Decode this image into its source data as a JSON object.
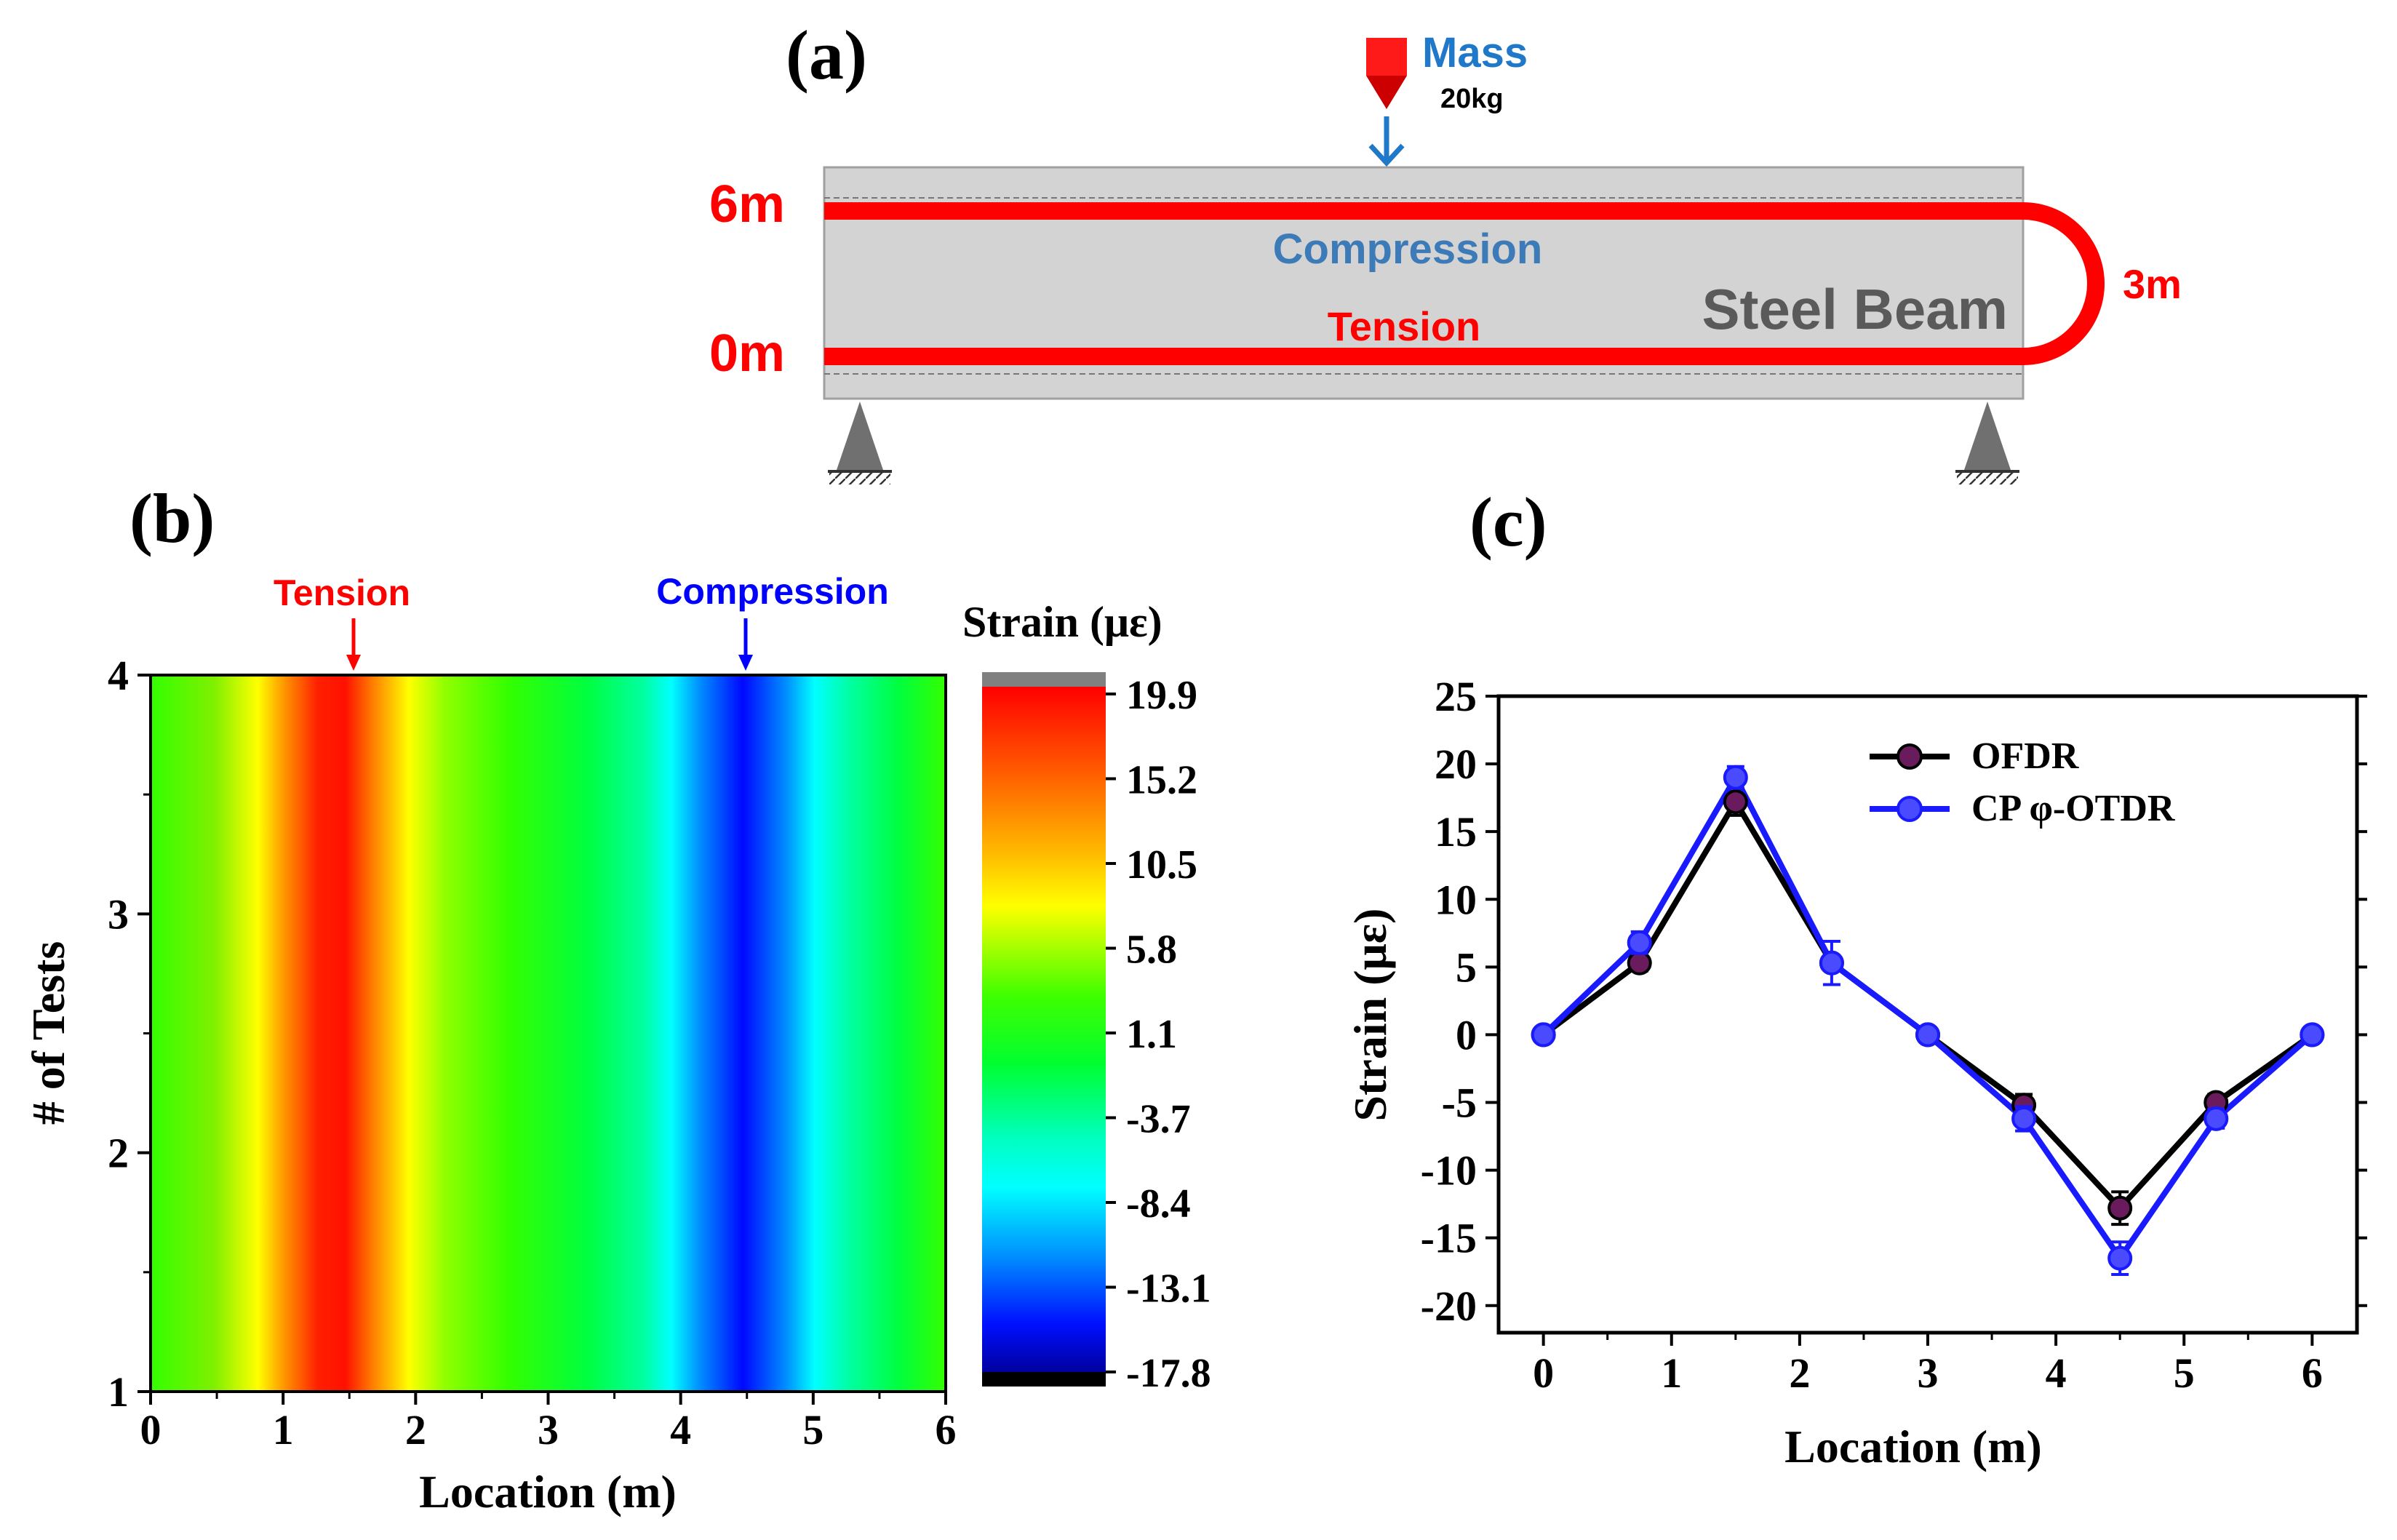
{
  "panel_a": {
    "label": "(a)",
    "mass_label": "Mass",
    "mass_weight": "20kg",
    "beam_label": "Steel Beam",
    "compression_label": "Compression",
    "tension_label": "Tension",
    "top_length": "6m",
    "bottom_length": "0m",
    "loop_length": "3m",
    "colors": {
      "fiber": "#ff0000",
      "beam": "#d3d3d3",
      "mass_text": "#1f78c8",
      "compression_text": "#3d7ab8",
      "beam_text": "#5a5a5a",
      "support": "#666666"
    }
  },
  "panel_b": {
    "label": "(b)",
    "tension_marker": "Tension",
    "compression_marker": "Compression",
    "colorbar_title": "Strain (με)"
  },
  "panel_c": {
    "label": "(c)"
  },
  "chart_data": [
    {
      "type": "heatmap",
      "panel": "(b)",
      "xlabel": "Location (m)",
      "ylabel": "# of Tests",
      "xlim": [
        0,
        6
      ],
      "ylim": [
        1,
        4
      ],
      "xticks": [
        "0",
        "1",
        "2",
        "3",
        "4",
        "5",
        "6"
      ],
      "yticks": [
        "1",
        "2",
        "3",
        "4"
      ],
      "colorbar_title": "Strain (με)",
      "colorbar_ticks": [
        "19.9",
        "15.2",
        "10.5",
        "5.8",
        "1.1",
        "-3.7",
        "-8.4",
        "-13.1",
        "-17.8"
      ],
      "color_range": [
        -17.8,
        19.9
      ],
      "tension_peak_x": 1.5,
      "compression_peak_x": 4.5,
      "profile_x": [
        0,
        0.5,
        0.9,
        1.5,
        2.0,
        2.5,
        3.0,
        3.5,
        3.9,
        4.5,
        5.1,
        5.5,
        6.0
      ],
      "profile_strain": [
        0,
        2,
        7,
        19.5,
        8,
        2,
        0,
        -3,
        -8,
        -17,
        -9,
        -4,
        0
      ]
    },
    {
      "type": "line",
      "panel": "(c)",
      "xlabel": "Location (m)",
      "ylabel": "Strain (με)",
      "xlim": [
        -0.35,
        6.35
      ],
      "ylim": [
        -22,
        25
      ],
      "xticks": [
        "0",
        "1",
        "2",
        "3",
        "4",
        "5",
        "6"
      ],
      "yticks": [
        "25",
        "20",
        "15",
        "10",
        "5",
        "0",
        "-5",
        "-10",
        "-15",
        "-20"
      ],
      "x": [
        0,
        0.75,
        1.5,
        2.25,
        3.0,
        3.75,
        4.5,
        5.25,
        6.0
      ],
      "series": [
        {
          "name": "OFDR",
          "color": "#000000",
          "marker": "#6a1b5e",
          "values": [
            0,
            5.3,
            17.2,
            5.3,
            0,
            -5.2,
            -12.8,
            -5.0,
            0
          ],
          "errors": [
            0.3,
            0.6,
            1.0,
            0.5,
            0.3,
            0.8,
            1.2,
            0.6,
            0.3
          ]
        },
        {
          "name": "CP φ-OTDR",
          "color": "#1a1aff",
          "marker": "#4a4aff",
          "values": [
            0,
            6.8,
            19.0,
            5.3,
            0,
            -6.2,
            -16.5,
            -6.2,
            0
          ],
          "errors": [
            0.3,
            0.8,
            0.8,
            1.6,
            0.3,
            0.9,
            1.2,
            0.7,
            0.3
          ]
        }
      ]
    }
  ]
}
